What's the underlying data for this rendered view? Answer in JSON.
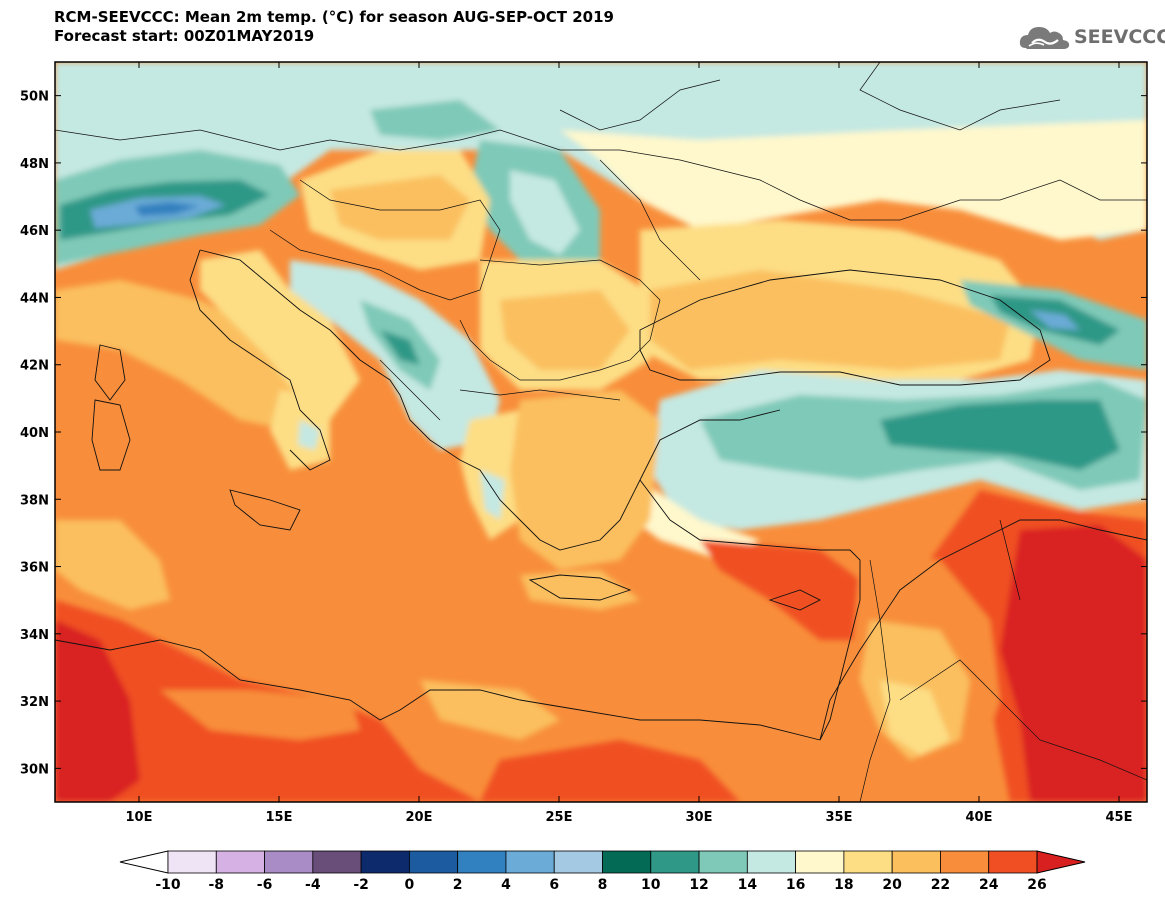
{
  "title": {
    "line1": "RCM-SEEVCCC: Mean 2m temp. (°C) for season AUG-SEP-OCT 2019",
    "line2": "Forecast start: 00Z01MAY2019"
  },
  "logo": {
    "text": "SEEVCCC",
    "icon": "cloud-icon"
  },
  "map": {
    "lon_range": [
      7,
      46
    ],
    "lat_range": [
      29,
      51
    ],
    "lon_ticks": [
      {
        "value": 10,
        "label": "10E"
      },
      {
        "value": 15,
        "label": "15E"
      },
      {
        "value": 20,
        "label": "20E"
      },
      {
        "value": 25,
        "label": "25E"
      },
      {
        "value": 30,
        "label": "30E"
      },
      {
        "value": 35,
        "label": "35E"
      },
      {
        "value": 40,
        "label": "40E"
      },
      {
        "value": 45,
        "label": "45E"
      }
    ],
    "lat_ticks": [
      {
        "value": 30,
        "label": "30N"
      },
      {
        "value": 32,
        "label": "32N"
      },
      {
        "value": 34,
        "label": "34N"
      },
      {
        "value": 36,
        "label": "36N"
      },
      {
        "value": 38,
        "label": "38N"
      },
      {
        "value": 40,
        "label": "40N"
      },
      {
        "value": 42,
        "label": "42N"
      },
      {
        "value": 44,
        "label": "44N"
      },
      {
        "value": 46,
        "label": "46N"
      },
      {
        "value": 48,
        "label": "48N"
      },
      {
        "value": 50,
        "label": "50N"
      }
    ]
  },
  "colorbar": {
    "labels": [
      "-10",
      "-8",
      "-6",
      "-4",
      "-2",
      "0",
      "2",
      "4",
      "6",
      "8",
      "10",
      "12",
      "14",
      "16",
      "18",
      "20",
      "22",
      "24",
      "26"
    ],
    "low_color": "#ffffff",
    "high_color": "#d92020",
    "colors": [
      "#efe4f6",
      "#d6b2e4",
      "#a98bc6",
      "#6a4e7a",
      "#0c2a6c",
      "#1c5ba0",
      "#3180bf",
      "#6aabd7",
      "#a3c9e3",
      "#036b55",
      "#2f9887",
      "#7fc9b8",
      "#c4e8e2",
      "#fff8cc",
      "#fdde85",
      "#fbbf5e",
      "#f88e3b",
      "#f04f24"
    ]
  }
}
